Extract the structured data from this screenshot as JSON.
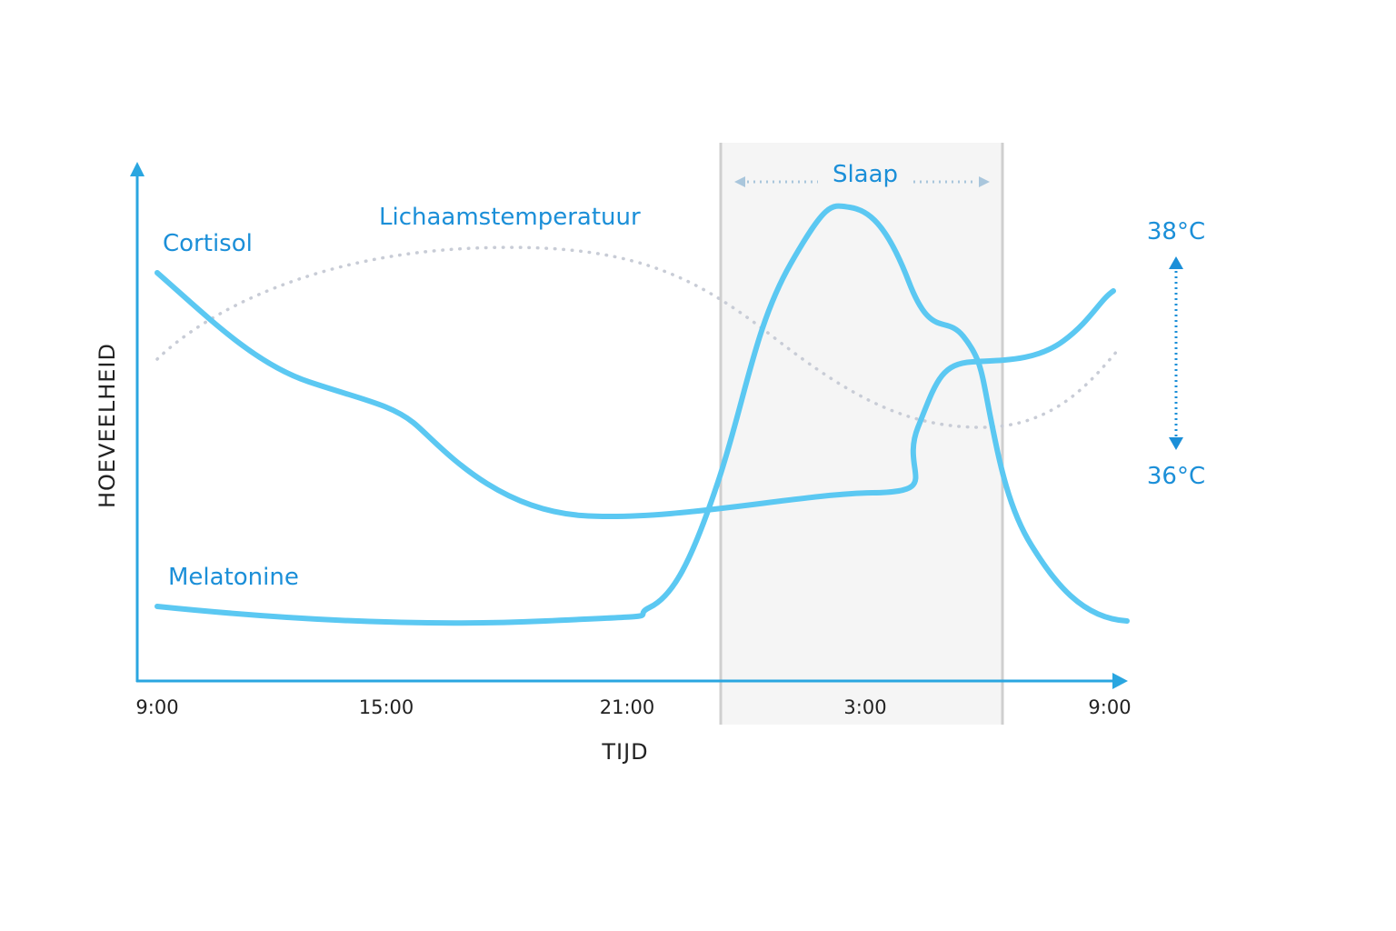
{
  "y_axis_label": "HOEVEELHEID",
  "x_axis_label": "TIJD",
  "x_ticks": [
    "9:00",
    "15:00",
    "21:00",
    "3:00",
    "9:00"
  ],
  "curve_labels": {
    "cortisol": "Cortisol",
    "temperature": "Lichaamstemperatuur",
    "melatonin": "Melatonine"
  },
  "sleep_label": "Slaap",
  "temperature_scale": {
    "high": "38°C",
    "low": "36°C"
  }
}
